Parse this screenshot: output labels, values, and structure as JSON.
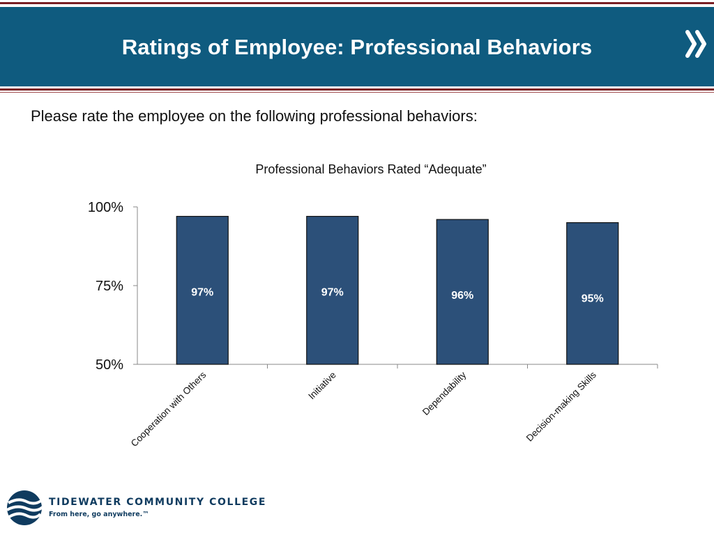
{
  "slide": {
    "title": "Ratings of Employee: Professional Behaviors",
    "prompt": "Please rate the employee on the following professional behaviors:"
  },
  "logo": {
    "name": "TIDEWATER COMMUNITY COLLEGE",
    "tagline": "From here, go anywhere.™"
  },
  "colors": {
    "header_band": "#0f5b7f",
    "rule": "#7a1f24",
    "bar_fill": "#2c5079",
    "logo_blue": "#0f3b5f"
  },
  "chart_data": {
    "type": "bar",
    "title": "Professional Behaviors Rated “Adequate”",
    "categories": [
      "Cooperation with Others",
      "Initiative",
      "Dependability",
      "Decision-making Skills"
    ],
    "values": [
      97,
      97,
      96,
      95
    ],
    "data_labels": [
      "97%",
      "97%",
      "96%",
      "95%"
    ],
    "ylim": [
      50,
      100
    ],
    "yticks": [
      50,
      75,
      100
    ],
    "ytick_labels": [
      "50%",
      "75%",
      "100%"
    ],
    "xlabel": "",
    "ylabel": "",
    "grid": false,
    "legend": "none"
  }
}
